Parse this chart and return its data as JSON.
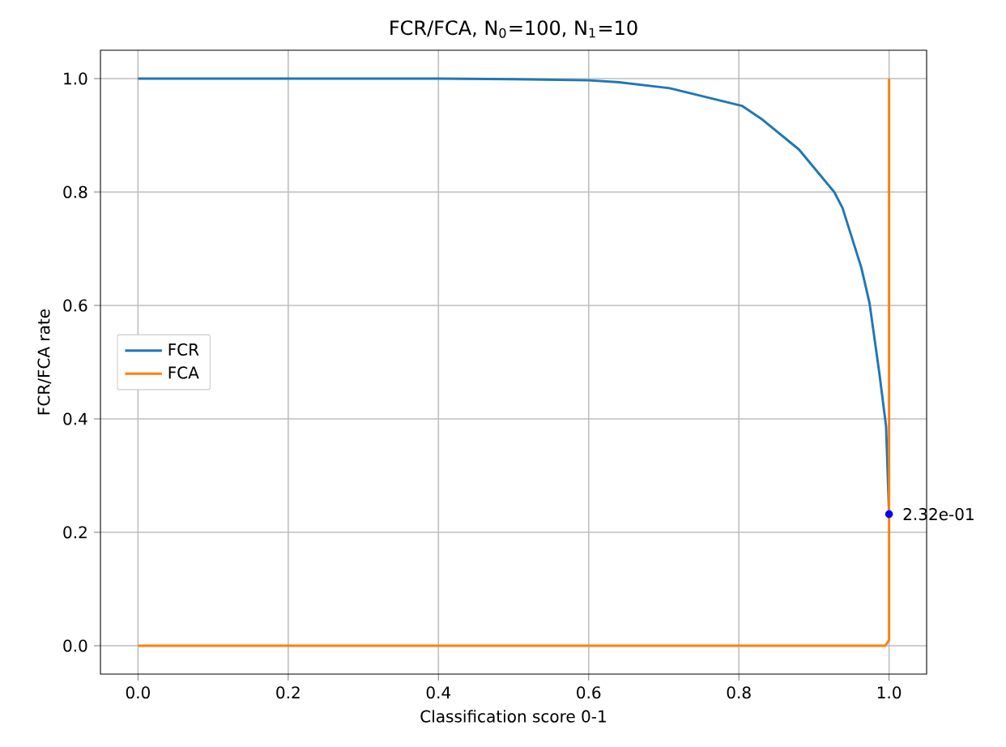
{
  "chart_data": {
    "type": "line",
    "title": "FCR/FCA, N$_{0}$=100, N$_{1}$=10",
    "xlabel": "Classification score 0-1",
    "ylabel": "FCR/FCA rate",
    "series": [
      {
        "name": "FCR",
        "color": "#1f77b4",
        "x": [
          0,
          0.2,
          0.4,
          0.5,
          0.6,
          0.637,
          0.708,
          0.804,
          0.83,
          0.88,
          0.927,
          0.938,
          0.963,
          0.974,
          0.987,
          0.996,
          1.0
        ],
        "values": [
          1.0,
          1.0,
          1.0,
          0.999,
          0.997,
          0.994,
          0.983,
          0.952,
          0.929,
          0.875,
          0.8,
          0.772,
          0.667,
          0.604,
          0.481,
          0.387,
          0.232
        ]
      },
      {
        "name": "FCA",
        "color": "#ff7f0e",
        "x": [
          0,
          0.5,
          0.995,
          1.0,
          1.0
        ],
        "values": [
          0,
          0,
          0,
          0.01,
          1.0
        ]
      }
    ],
    "xlim": [
      -0.05,
      1.05
    ],
    "ylim": [
      -0.05,
      1.05
    ],
    "xticks": [
      {
        "value": 0,
        "label": "0.0"
      },
      0.2,
      0.4,
      0.6,
      0.8,
      {
        "value": 1,
        "label": "1.0"
      }
    ],
    "yticks": [
      {
        "value": 0,
        "label": "0.0"
      },
      0.2,
      0.4,
      0.6,
      0.8,
      {
        "value": 1,
        "label": "1.0"
      }
    ],
    "grid": true,
    "legend": "left",
    "marker": "none",
    "line_style": "solid",
    "annotations": [
      {
        "text": "2.32e-01",
        "x": 1.0,
        "y": 0.232
      }
    ]
  }
}
